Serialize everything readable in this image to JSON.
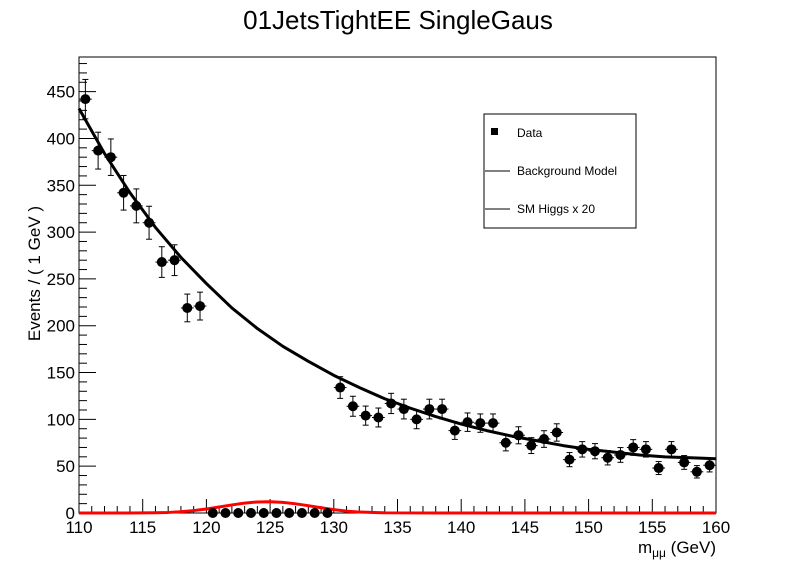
{
  "chart_data": {
    "type": "scatter",
    "title": "01JetsTightEE SingleGaus",
    "xlabel_main": "m",
    "xlabel_sub": "μμ",
    "xlabel_unit": " (GeV)",
    "ylabel": "Events / ( 1 GeV )",
    "xlim": [
      110,
      160
    ],
    "ylim": [
      0,
      487
    ],
    "x_ticks": [
      110,
      115,
      120,
      125,
      130,
      135,
      140,
      145,
      150,
      155,
      160
    ],
    "y_ticks": [
      0,
      50,
      100,
      150,
      200,
      250,
      300,
      350,
      400,
      450
    ],
    "legend": {
      "position": "top-right",
      "entries": [
        {
          "label": "Data",
          "marker": "square"
        },
        {
          "label": "Background Model",
          "marker": "line"
        },
        {
          "label": "SM Higgs x 20",
          "marker": "line"
        }
      ]
    },
    "series": [
      {
        "name": "Data",
        "kind": "points",
        "color": "#000000",
        "x": [
          110.5,
          111.5,
          112.5,
          113.5,
          114.5,
          115.5,
          116.5,
          117.5,
          118.5,
          119.5,
          120.5,
          121.5,
          122.5,
          123.5,
          124.5,
          125.5,
          126.5,
          127.5,
          128.5,
          129.5,
          130.5,
          131.5,
          132.5,
          133.5,
          134.5,
          135.5,
          136.5,
          137.5,
          138.5,
          139.5,
          140.5,
          141.5,
          142.5,
          143.5,
          144.5,
          145.5,
          146.5,
          147.5,
          148.5,
          149.5,
          150.5,
          151.5,
          152.5,
          153.5,
          154.5,
          155.5,
          156.5,
          157.5,
          158.5,
          159.5
        ],
        "y": [
          442,
          387,
          380,
          342,
          328,
          310,
          268,
          270,
          219,
          221,
          0,
          0,
          0,
          0,
          0,
          0,
          0,
          0,
          0,
          0,
          134,
          114,
          104,
          102,
          117,
          111,
          100,
          111,
          111,
          88,
          97,
          96,
          96,
          75,
          83,
          72,
          79,
          86,
          57,
          68,
          66,
          59,
          62,
          70,
          68,
          48,
          68,
          54,
          44,
          51
        ]
      },
      {
        "name": "Background Model",
        "kind": "curve",
        "color": "#000000",
        "x": [
          110,
          112,
          114,
          116,
          118,
          120,
          122,
          124,
          126,
          128,
          130,
          132,
          134,
          136,
          138,
          140,
          142,
          144,
          146,
          148,
          150,
          152,
          154,
          156,
          158,
          160
        ],
        "y": [
          432,
          384,
          342,
          305,
          273,
          245,
          219,
          197,
          178,
          162,
          147,
          134,
          122,
          112,
          103,
          95,
          88,
          82,
          77,
          72,
          68,
          65,
          62,
          60,
          59,
          58
        ]
      },
      {
        "name": "SM Higgs x 20",
        "kind": "curve",
        "color": "#ff0000",
        "x": [
          110,
          114,
          116,
          117,
          118,
          119,
          120,
          121,
          122,
          123,
          124,
          125,
          126,
          127,
          128,
          129,
          130,
          131,
          132,
          134,
          138,
          160
        ],
        "y": [
          0,
          0,
          0.2,
          0.6,
          1.4,
          2.6,
          4.3,
          6.4,
          8.6,
          10.6,
          11.8,
          12.0,
          11.3,
          9.8,
          7.8,
          5.6,
          3.6,
          2.0,
          1.0,
          0.2,
          0,
          0
        ]
      }
    ]
  }
}
